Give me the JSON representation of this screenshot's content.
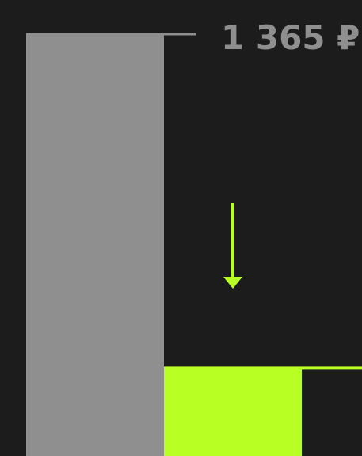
{
  "chart_data": {
    "type": "bar",
    "categories": [
      null,
      null
    ],
    "values": [
      1365,
      287
    ],
    "value_labels": [
      "1 365 ₽",
      null
    ],
    "colors": [
      "#8f8f8f",
      "#b8ff24"
    ],
    "ylim": [
      0,
      1400
    ]
  }
}
